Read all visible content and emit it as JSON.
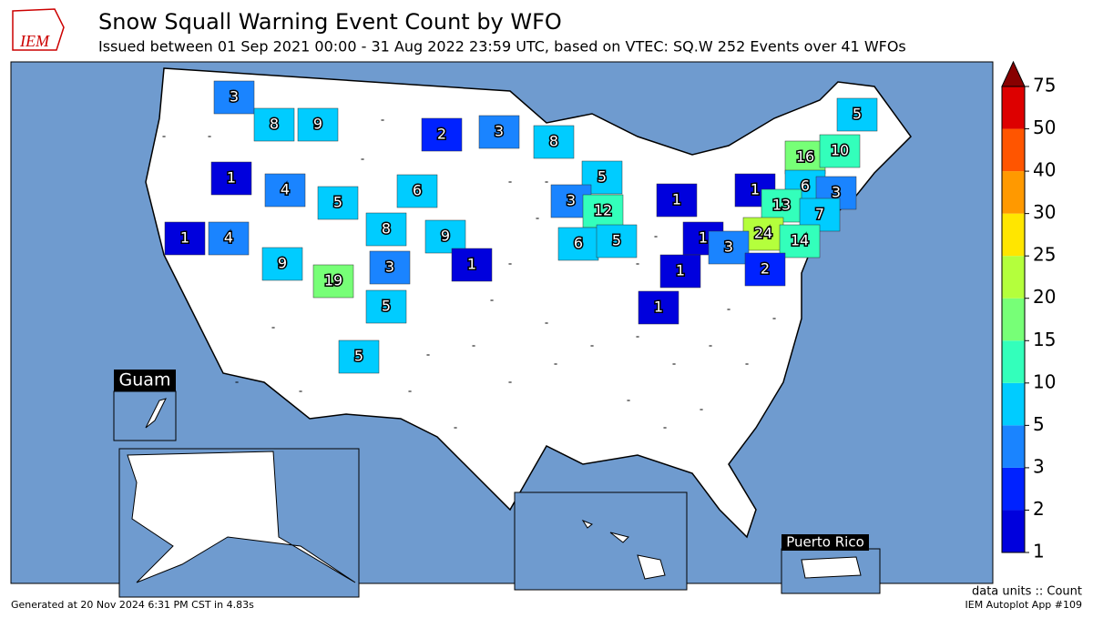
{
  "header": {
    "logo_text": "IEM",
    "title": "Snow Squall Warning Event Count by WFO",
    "subtitle": "Issued between 01 Sep 2021 00:00 - 31 Aug 2022 23:59 UTC, based on VTEC: SQ.W   252 Events over 41 WFOs"
  },
  "map": {
    "counts": [
      3,
      8,
      9,
      2,
      3,
      8,
      1,
      4,
      5,
      6,
      5,
      3,
      12,
      1,
      1,
      16,
      10,
      5,
      6,
      3,
      13,
      7,
      1,
      4,
      8,
      9,
      24,
      14,
      6,
      5,
      1,
      3,
      1,
      9,
      19,
      3,
      1,
      2,
      5,
      1,
      5
    ],
    "zero_marker": "-",
    "insets": {
      "guam": "Guam",
      "puerto_rico": "Puerto Rico"
    }
  },
  "colorbar": {
    "levels": [
      1,
      2,
      3,
      5,
      10,
      15,
      20,
      25,
      30,
      40,
      50,
      75
    ],
    "colors": [
      "#0000dd",
      "#0022ff",
      "#1a84ff",
      "#00ccff",
      "#33ffbb",
      "#77ff77",
      "#b4ff3c",
      "#ffe600",
      "#ff9900",
      "#ff5500",
      "#dd0000"
    ],
    "extend_color": "#880000"
  },
  "footer": {
    "generated": "Generated at 20 Nov 2024 6:31 PM CST in 4.83s",
    "units": "data units :: Count",
    "app": "IEM Autoplot App #109"
  }
}
